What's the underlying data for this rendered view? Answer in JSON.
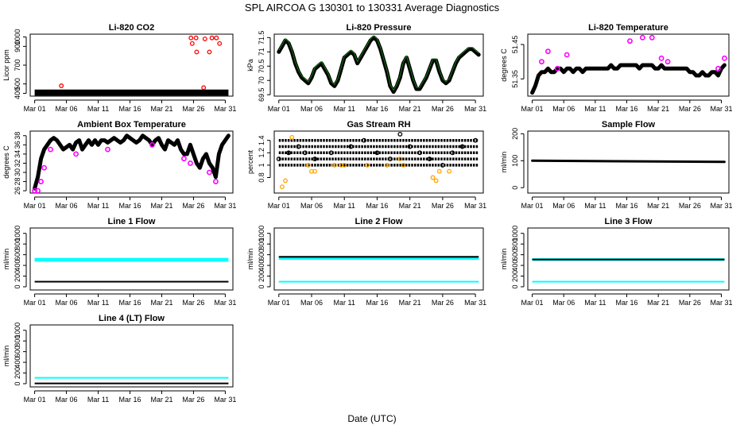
{
  "figure": {
    "title": "SPL   AIRCOA G   130301 to 130331   Average Diagnostics",
    "xlabel": "Date (UTC)"
  },
  "chart_data": [
    {
      "type": "scatter",
      "title": "Li-820 CO2",
      "ylabel": "Licor ppm",
      "x_ticks": [
        "Mar 01",
        "Mar 06",
        "Mar 11",
        "Mar 16",
        "Mar 21",
        "Mar 26",
        "Mar 31"
      ],
      "ylim": [
        370,
        1030
      ],
      "yticks": [
        400,
        500,
        700,
        900,
        1000
      ],
      "band": {
        "low": 375,
        "high": 440
      },
      "series": [
        {
          "name": "co2",
          "color": "#000000",
          "x": [
            1,
            31.5
          ],
          "y": [
            400,
            400
          ]
        },
        {
          "name": "co2_outliers",
          "color": "#ff0000",
          "x": [
            5.2,
            25.6,
            26.4,
            27.8,
            28.5,
            28.9,
            29.6,
            30.1,
            25.8,
            26.5,
            27.6
          ],
          "y": [
            480,
            990,
            990,
            980,
            840,
            990,
            990,
            930,
            930,
            840,
            460
          ]
        }
      ]
    },
    {
      "type": "line",
      "title": "Li-820 Pressure",
      "ylabel": "kPa",
      "x_ticks": [
        "Mar 01",
        "Mar 06",
        "Mar 11",
        "Mar 16",
        "Mar 21",
        "Mar 26",
        "Mar 31"
      ],
      "ylim": [
        69.45,
        71.62
      ],
      "yticks": [
        69.5,
        70.0,
        70.5,
        71.0,
        71.5
      ],
      "series": [
        {
          "name": "pressure",
          "color": "#000000",
          "x": [
            1,
            1.5,
            2,
            2.5,
            3,
            3.5,
            4,
            4.5,
            5,
            5.5,
            6,
            6.5,
            7,
            7.5,
            8,
            8.5,
            9,
            9.5,
            10,
            10.5,
            11,
            11.5,
            12,
            12.5,
            13,
            13.5,
            14,
            14.5,
            15,
            15.5,
            16,
            16.5,
            17,
            17.5,
            18,
            18.5,
            19,
            19.5,
            20,
            20.5,
            21,
            21.5,
            22,
            22.5,
            23,
            23.5,
            24,
            24.5,
            25,
            25.5,
            26,
            26.5,
            27,
            27.5,
            28,
            28.5,
            29,
            29.5,
            30,
            30.5,
            31,
            31.5
          ],
          "y": [
            71.0,
            71.2,
            71.4,
            71.3,
            71.0,
            70.6,
            70.3,
            70.1,
            70.0,
            69.9,
            70.1,
            70.4,
            70.5,
            70.6,
            70.4,
            70.2,
            69.9,
            69.8,
            70.0,
            70.4,
            70.8,
            70.9,
            71.0,
            70.9,
            70.6,
            70.8,
            71.0,
            71.2,
            71.4,
            71.5,
            71.4,
            71.1,
            70.7,
            70.3,
            69.8,
            69.6,
            69.8,
            70.1,
            70.6,
            70.8,
            70.4,
            70.0,
            69.7,
            69.7,
            69.9,
            70.1,
            70.4,
            70.7,
            70.7,
            70.3,
            70.0,
            69.9,
            70.0,
            70.3,
            70.6,
            70.8,
            70.9,
            71.0,
            71.1,
            71.1,
            71.0,
            70.9
          ]
        }
      ]
    },
    {
      "type": "line",
      "title": "Li-820 Temperature",
      "ylabel": "degrees C",
      "x_ticks": [
        "Mar 01",
        "Mar 06",
        "Mar 11",
        "Mar 16",
        "Mar 21",
        "Mar 26",
        "Mar 31"
      ],
      "ylim": [
        51.3,
        51.48
      ],
      "yticks": [
        51.35,
        51.45
      ],
      "series": [
        {
          "name": "licor_temp",
          "color": "#000000",
          "x": [
            1,
            1.5,
            2,
            2.5,
            3,
            3.5,
            4,
            4.5,
            5,
            5.5,
            6,
            6.5,
            7,
            7.5,
            8,
            8.5,
            9,
            9.5,
            10,
            10.5,
            11,
            11.5,
            12,
            12.5,
            13,
            13.5,
            14,
            14.5,
            15,
            15.5,
            16,
            16.5,
            17,
            17.5,
            18,
            18.5,
            19,
            19.5,
            20,
            20.5,
            21,
            21.5,
            22,
            22.5,
            23,
            23.5,
            24,
            24.5,
            25,
            25.5,
            26,
            26.5,
            27,
            27.5,
            28,
            28.5,
            29,
            29.5,
            30,
            30.5,
            31,
            31.5
          ],
          "y": [
            51.31,
            51.33,
            51.36,
            51.37,
            51.37,
            51.38,
            51.37,
            51.37,
            51.38,
            51.38,
            51.37,
            51.38,
            51.38,
            51.37,
            51.38,
            51.38,
            51.37,
            51.38,
            51.38,
            51.38,
            51.38,
            51.38,
            51.38,
            51.38,
            51.38,
            51.39,
            51.38,
            51.38,
            51.39,
            51.39,
            51.39,
            51.39,
            51.39,
            51.39,
            51.38,
            51.39,
            51.39,
            51.39,
            51.39,
            51.38,
            51.38,
            51.39,
            51.38,
            51.38,
            51.38,
            51.38,
            51.38,
            51.38,
            51.38,
            51.38,
            51.37,
            51.37,
            51.36,
            51.36,
            51.37,
            51.36,
            51.36,
            51.37,
            51.37,
            51.36,
            51.38,
            51.39
          ]
        },
        {
          "name": "licor_temp_max",
          "color": "#ff00ff",
          "x": [
            2.5,
            3.5,
            5.0,
            6.5,
            16.5,
            18.5,
            20.0,
            21.5,
            22.5,
            30.5,
            31.5
          ],
          "y": [
            51.4,
            51.43,
            51.38,
            51.42,
            51.46,
            51.47,
            51.47,
            51.41,
            51.4,
            51.38,
            51.41
          ]
        }
      ]
    },
    {
      "type": "line",
      "title": "Ambient Box Temperature",
      "ylabel": "degrees C",
      "x_ticks": [
        "Mar 01",
        "Mar 06",
        "Mar 11",
        "Mar 16",
        "Mar 21",
        "Mar 26",
        "Mar 31"
      ],
      "ylim": [
        25.5,
        39
      ],
      "yticks": [
        26,
        28,
        30,
        32,
        34,
        36,
        38
      ],
      "series": [
        {
          "name": "box_temp",
          "color": "#000000",
          "x": [
            1,
            1.5,
            2,
            2.5,
            3,
            3.5,
            4,
            4.5,
            5,
            5.5,
            6,
            6.5,
            7,
            7.5,
            8,
            8.5,
            9,
            9.5,
            10,
            10.5,
            11,
            11.5,
            12,
            12.5,
            13,
            13.5,
            14,
            14.5,
            15,
            15.5,
            16,
            16.5,
            17,
            17.5,
            18,
            18.5,
            19,
            19.5,
            20,
            20.5,
            21,
            21.5,
            22,
            22.5,
            23,
            23.5,
            24,
            24.5,
            25,
            25.5,
            26,
            26.5,
            27,
            27.5,
            28,
            28.5,
            29,
            29.5,
            30,
            30.5,
            31,
            31.5
          ],
          "y": [
            26.5,
            29,
            33,
            35,
            36,
            37,
            37.5,
            37,
            36,
            35,
            35.5,
            36,
            35,
            36.5,
            37,
            35,
            36,
            37,
            36,
            37,
            36,
            37,
            37,
            36.5,
            37,
            37.5,
            37,
            36.5,
            37,
            38,
            37.5,
            37,
            36.5,
            37,
            38,
            37.5,
            37,
            36,
            37,
            37.5,
            36,
            35,
            37,
            36.5,
            36,
            37,
            35,
            34,
            34,
            36,
            34,
            32,
            31,
            33,
            34,
            32,
            31,
            29,
            34,
            36,
            37,
            38
          ]
        },
        {
          "name": "box_temp_min",
          "color": "#ff00ff",
          "x": [
            1,
            1.5,
            2,
            2.5,
            3.5,
            7.5,
            12.5,
            19.5,
            24.5,
            25.5,
            28.5,
            29.5
          ],
          "y": [
            26,
            26,
            28,
            31,
            35,
            34,
            35,
            36,
            33,
            32,
            30,
            28
          ]
        }
      ]
    },
    {
      "type": "scatter",
      "title": "Gas Stream RH",
      "ylabel": "percent",
      "x_ticks": [
        "Mar 01",
        "Mar 06",
        "Mar 11",
        "Mar 16",
        "Mar 21",
        "Mar 26",
        "Mar 31"
      ],
      "ylim": [
        0.55,
        1.55
      ],
      "yticks": [
        0.8,
        1.0,
        1.2,
        1.4
      ],
      "levels": [
        1.0,
        1.1,
        1.2,
        1.3,
        1.4
      ],
      "series": [
        {
          "name": "rh",
          "color": "#000000",
          "x": [
            1.0,
            2.5,
            4.0,
            5.0,
            6.5,
            9.0,
            12.0,
            14.0,
            16.0,
            18.0,
            19.5,
            21.0,
            22.5,
            24.0,
            26.0,
            27.5,
            29.0,
            31.0
          ],
          "y": [
            1.1,
            1.2,
            1.3,
            1.2,
            1.1,
            1.2,
            1.3,
            1.4,
            1.2,
            1.1,
            1.5,
            1.3,
            1.2,
            1.1,
            1.0,
            1.2,
            1.3,
            1.4
          ]
        },
        {
          "name": "rh_orange",
          "color": "#ffa500",
          "x": [
            1.5,
            2.0,
            3.0,
            5.5,
            6.0,
            6.5,
            9.5,
            10.5,
            11.0,
            14.5,
            17.5,
            19.5,
            20.0,
            24.5,
            25.0,
            25.5,
            27.0
          ],
          "y": [
            0.65,
            0.75,
            1.45,
            1.0,
            0.9,
            0.9,
            1.0,
            1.0,
            1.0,
            1.0,
            1.0,
            1.1,
            1.0,
            0.8,
            0.75,
            0.9,
            0.9
          ]
        }
      ]
    },
    {
      "type": "line",
      "title": "Sample Flow",
      "ylabel": "ml/min",
      "x_ticks": [
        "Mar 01",
        "Mar 06",
        "Mar 11",
        "Mar 16",
        "Mar 21",
        "Mar 26",
        "Mar 31"
      ],
      "ylim": [
        -20,
        210
      ],
      "yticks": [
        0,
        100,
        200
      ],
      "series": [
        {
          "name": "sample_flow",
          "color": "#000000",
          "x": [
            1,
            31.5
          ],
          "y": [
            100,
            96
          ]
        }
      ]
    },
    {
      "type": "line",
      "title": "Line 1 Flow",
      "ylabel": "ml/min",
      "x_ticks": [
        "Mar 01",
        "Mar 06",
        "Mar 11",
        "Mar 16",
        "Mar 21",
        "Mar 26",
        "Mar 31"
      ],
      "ylim": [
        -60,
        1100
      ],
      "yticks": [
        0,
        200,
        400,
        600,
        800,
        1000
      ],
      "series": [
        {
          "name": "line1_cyan",
          "color": "#00ffff",
          "x": [
            1,
            31.5
          ],
          "y": [
            505,
            505
          ],
          "band": 70
        },
        {
          "name": "line1_black",
          "color": "#000000",
          "x": [
            1,
            31.5
          ],
          "y": [
            100,
            100
          ],
          "band": 20
        }
      ]
    },
    {
      "type": "line",
      "title": "Line 2 Flow",
      "ylabel": "ml/min",
      "x_ticks": [
        "Mar 01",
        "Mar 06",
        "Mar 11",
        "Mar 16",
        "Mar 21",
        "Mar 26",
        "Mar 31"
      ],
      "ylim": [
        -60,
        1100
      ],
      "yticks": [
        0,
        200,
        400,
        600,
        800,
        1000
      ],
      "series": [
        {
          "name": "line2_cyan",
          "color": "#00ffff",
          "x": [
            1,
            31.5
          ],
          "y": [
            540,
            540
          ],
          "band": 70
        },
        {
          "name": "line2_black",
          "color": "#000000",
          "x": [
            1,
            31.5
          ],
          "y": [
            560,
            550
          ],
          "band": 30
        },
        {
          "name": "line2_cyan_low",
          "color": "#00ffff",
          "x": [
            1,
            31.5
          ],
          "y": [
            100,
            100
          ],
          "band": 20
        }
      ]
    },
    {
      "type": "line",
      "title": "Line 3 Flow",
      "ylabel": "ml/min",
      "x_ticks": [
        "Mar 01",
        "Mar 06",
        "Mar 11",
        "Mar 16",
        "Mar 21",
        "Mar 26",
        "Mar 31"
      ],
      "ylim": [
        -60,
        1100
      ],
      "yticks": [
        0,
        200,
        400,
        600,
        800,
        1000
      ],
      "series": [
        {
          "name": "line3_cyan",
          "color": "#00ffff",
          "x": [
            1,
            31.5
          ],
          "y": [
            510,
            510
          ],
          "band": 50
        },
        {
          "name": "line3_black",
          "color": "#000000",
          "x": [
            1,
            31.5
          ],
          "y": [
            510,
            510
          ],
          "band": 30
        },
        {
          "name": "line3_cyan_low",
          "color": "#00ffff",
          "x": [
            1,
            31.5
          ],
          "y": [
            100,
            100
          ],
          "band": 20
        }
      ]
    },
    {
      "type": "line",
      "title": "Line 4 (LT) Flow",
      "ylabel": "ml/min",
      "x_ticks": [
        "Mar 01",
        "Mar 06",
        "Mar 11",
        "Mar 16",
        "Mar 21",
        "Mar 26",
        "Mar 31"
      ],
      "ylim": [
        -60,
        1100
      ],
      "yticks": [
        0,
        200,
        400,
        600,
        800,
        1000
      ],
      "series": [
        {
          "name": "line4_cyan",
          "color": "#00ffff",
          "x": [
            1,
            31.5
          ],
          "y": [
            110,
            110
          ],
          "band": 30
        },
        {
          "name": "line4_black",
          "color": "#000000",
          "x": [
            1,
            31.5
          ],
          "y": [
            10,
            10
          ],
          "band": 20
        }
      ]
    }
  ]
}
